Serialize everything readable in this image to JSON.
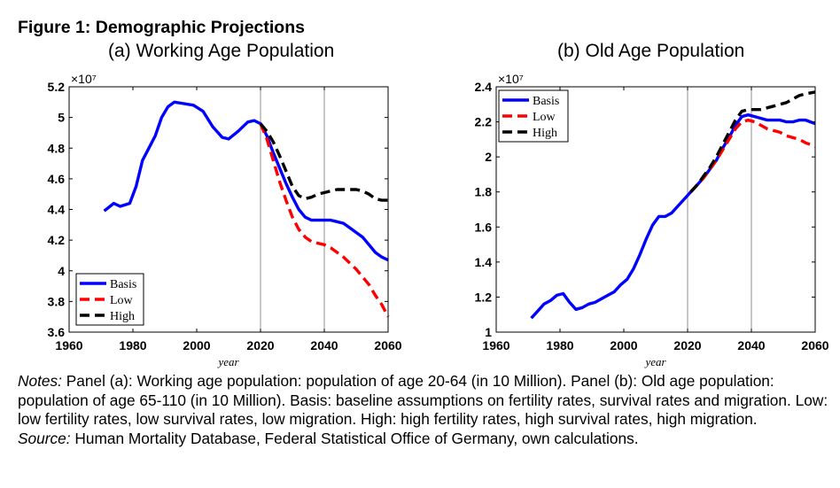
{
  "figure": {
    "title": "Figure 1: Demographic Projections",
    "panels": [
      {
        "title": "(a)  Working Age Population",
        "exponent_label": "×10⁷"
      },
      {
        "title": "(b)  Old Age Population",
        "exponent_label": "×10⁷"
      }
    ]
  },
  "notes": {
    "notes_label": "Notes:",
    "notes_text": " Panel (a): Working age population: population of age 20-64 (in 10 Million). Panel (b): Old age population: population of age 65-110 (in 10 Million). Basis: baseline assumptions on fertility rates, survival rates and migration. Low: low fertility rates, low survival rates, low migration. High: high fertility rates, high survival rates, high migration.",
    "source_label": "Source:",
    "source_text": " Human Mortality Database, Federal Statistical Office of Germany, own calculations."
  },
  "chart_data": [
    {
      "type": "line",
      "title": "(a)  Working Age Population",
      "xlabel": "year",
      "ylabel": "",
      "xlim": [
        1960,
        2060
      ],
      "ylim": [
        3.6,
        5.2
      ],
      "y_scale_note": "×10⁷",
      "xticks": [
        "1960",
        "1980",
        "2000",
        "2020",
        "2040",
        "2060"
      ],
      "yticks": [
        "3.6",
        "3.8",
        "4",
        "4.2",
        "4.4",
        "4.6",
        "4.8",
        "5",
        "5.2"
      ],
      "vlines": [
        2020,
        2040
      ],
      "legend": "bottom-left",
      "series": [
        {
          "name": "Basis",
          "color": "#0000ff",
          "dash": "solid",
          "x": [
            1971,
            1974,
            1976,
            1979,
            1981,
            1983,
            1985,
            1987,
            1989,
            1991,
            1993,
            1996,
            1999,
            2002,
            2005,
            2008,
            2010,
            2013,
            2016,
            2018,
            2020,
            2022,
            2024,
            2026,
            2028,
            2030,
            2032,
            2034,
            2036,
            2038,
            2040,
            2042,
            2044,
            2046,
            2048,
            2050,
            2052,
            2054,
            2056,
            2058,
            2060
          ],
          "y": [
            4.39,
            4.44,
            4.42,
            4.44,
            4.55,
            4.72,
            4.8,
            4.88,
            5.0,
            5.07,
            5.1,
            5.09,
            5.08,
            5.04,
            4.94,
            4.87,
            4.86,
            4.91,
            4.97,
            4.98,
            4.96,
            4.88,
            4.77,
            4.67,
            4.57,
            4.48,
            4.4,
            4.35,
            4.33,
            4.33,
            4.33,
            4.33,
            4.32,
            4.31,
            4.28,
            4.25,
            4.22,
            4.17,
            4.12,
            4.09,
            4.07
          ]
        },
        {
          "name": "Low",
          "color": "#ff0000",
          "dash": "dashed",
          "x": [
            2020,
            2022,
            2024,
            2026,
            2028,
            2030,
            2032,
            2034,
            2036,
            2038,
            2040,
            2042,
            2044,
            2046,
            2048,
            2050,
            2052,
            2054,
            2056,
            2058,
            2060
          ],
          "y": [
            4.96,
            4.86,
            4.72,
            4.58,
            4.46,
            4.35,
            4.27,
            4.22,
            4.19,
            4.18,
            4.17,
            4.15,
            4.12,
            4.09,
            4.05,
            4.01,
            3.96,
            3.91,
            3.84,
            3.78,
            3.7
          ]
        },
        {
          "name": "High",
          "color": "#000000",
          "dash": "dashed",
          "x": [
            2020,
            2022,
            2024,
            2026,
            2028,
            2030,
            2032,
            2034,
            2036,
            2038,
            2040,
            2042,
            2044,
            2046,
            2048,
            2050,
            2052,
            2054,
            2056,
            2058,
            2060
          ],
          "y": [
            4.96,
            4.91,
            4.84,
            4.75,
            4.65,
            4.55,
            4.49,
            4.47,
            4.48,
            4.5,
            4.51,
            4.52,
            4.53,
            4.53,
            4.53,
            4.53,
            4.52,
            4.5,
            4.47,
            4.46,
            4.46
          ]
        }
      ]
    },
    {
      "type": "line",
      "title": "(b)  Old Age Population",
      "xlabel": "year",
      "ylabel": "",
      "xlim": [
        1960,
        2060
      ],
      "ylim": [
        1,
        2.4
      ],
      "y_scale_note": "×10⁷",
      "xticks": [
        "1960",
        "1980",
        "2000",
        "2020",
        "2040",
        "2060"
      ],
      "yticks": [
        "1",
        "1.2",
        "1.4",
        "1.6",
        "1.8",
        "2",
        "2.2",
        "2.4"
      ],
      "vlines": [
        2020,
        2040
      ],
      "legend": "top-left",
      "series": [
        {
          "name": "Basis",
          "color": "#0000ff",
          "dash": "solid",
          "x": [
            1971,
            1973,
            1975,
            1977,
            1979,
            1981,
            1983,
            1985,
            1987,
            1989,
            1991,
            1993,
            1995,
            1997,
            1999,
            2001,
            2003,
            2005,
            2007,
            2009,
            2011,
            2013,
            2015,
            2017,
            2019,
            2021,
            2023,
            2025,
            2027,
            2029,
            2031,
            2033,
            2035,
            2037,
            2039,
            2041,
            2043,
            2045,
            2047,
            2049,
            2051,
            2053,
            2055,
            2057,
            2060
          ],
          "y": [
            1.08,
            1.12,
            1.16,
            1.18,
            1.21,
            1.22,
            1.17,
            1.13,
            1.14,
            1.16,
            1.17,
            1.19,
            1.21,
            1.23,
            1.27,
            1.3,
            1.36,
            1.44,
            1.53,
            1.61,
            1.66,
            1.66,
            1.68,
            1.72,
            1.76,
            1.8,
            1.84,
            1.88,
            1.93,
            1.98,
            2.05,
            2.11,
            2.18,
            2.23,
            2.24,
            2.23,
            2.22,
            2.21,
            2.21,
            2.21,
            2.2,
            2.2,
            2.21,
            2.21,
            2.19
          ]
        },
        {
          "name": "Low",
          "color": "#ff0000",
          "dash": "dashed",
          "x": [
            2021,
            2023,
            2025,
            2027,
            2029,
            2031,
            2033,
            2035,
            2037,
            2039,
            2041,
            2043,
            2045,
            2047,
            2049,
            2051,
            2053,
            2055,
            2057,
            2060
          ],
          "y": [
            1.8,
            1.84,
            1.88,
            1.93,
            1.98,
            2.04,
            2.1,
            2.16,
            2.2,
            2.21,
            2.2,
            2.18,
            2.16,
            2.15,
            2.14,
            2.12,
            2.11,
            2.1,
            2.08,
            2.06
          ]
        },
        {
          "name": "High",
          "color": "#000000",
          "dash": "dashed",
          "x": [
            2021,
            2023,
            2025,
            2027,
            2029,
            2031,
            2033,
            2035,
            2037,
            2039,
            2041,
            2043,
            2045,
            2047,
            2049,
            2051,
            2053,
            2055,
            2057,
            2060
          ],
          "y": [
            1.8,
            1.84,
            1.89,
            1.94,
            2.0,
            2.07,
            2.14,
            2.21,
            2.26,
            2.27,
            2.27,
            2.27,
            2.28,
            2.29,
            2.3,
            2.31,
            2.33,
            2.35,
            2.36,
            2.37
          ]
        }
      ]
    }
  ]
}
